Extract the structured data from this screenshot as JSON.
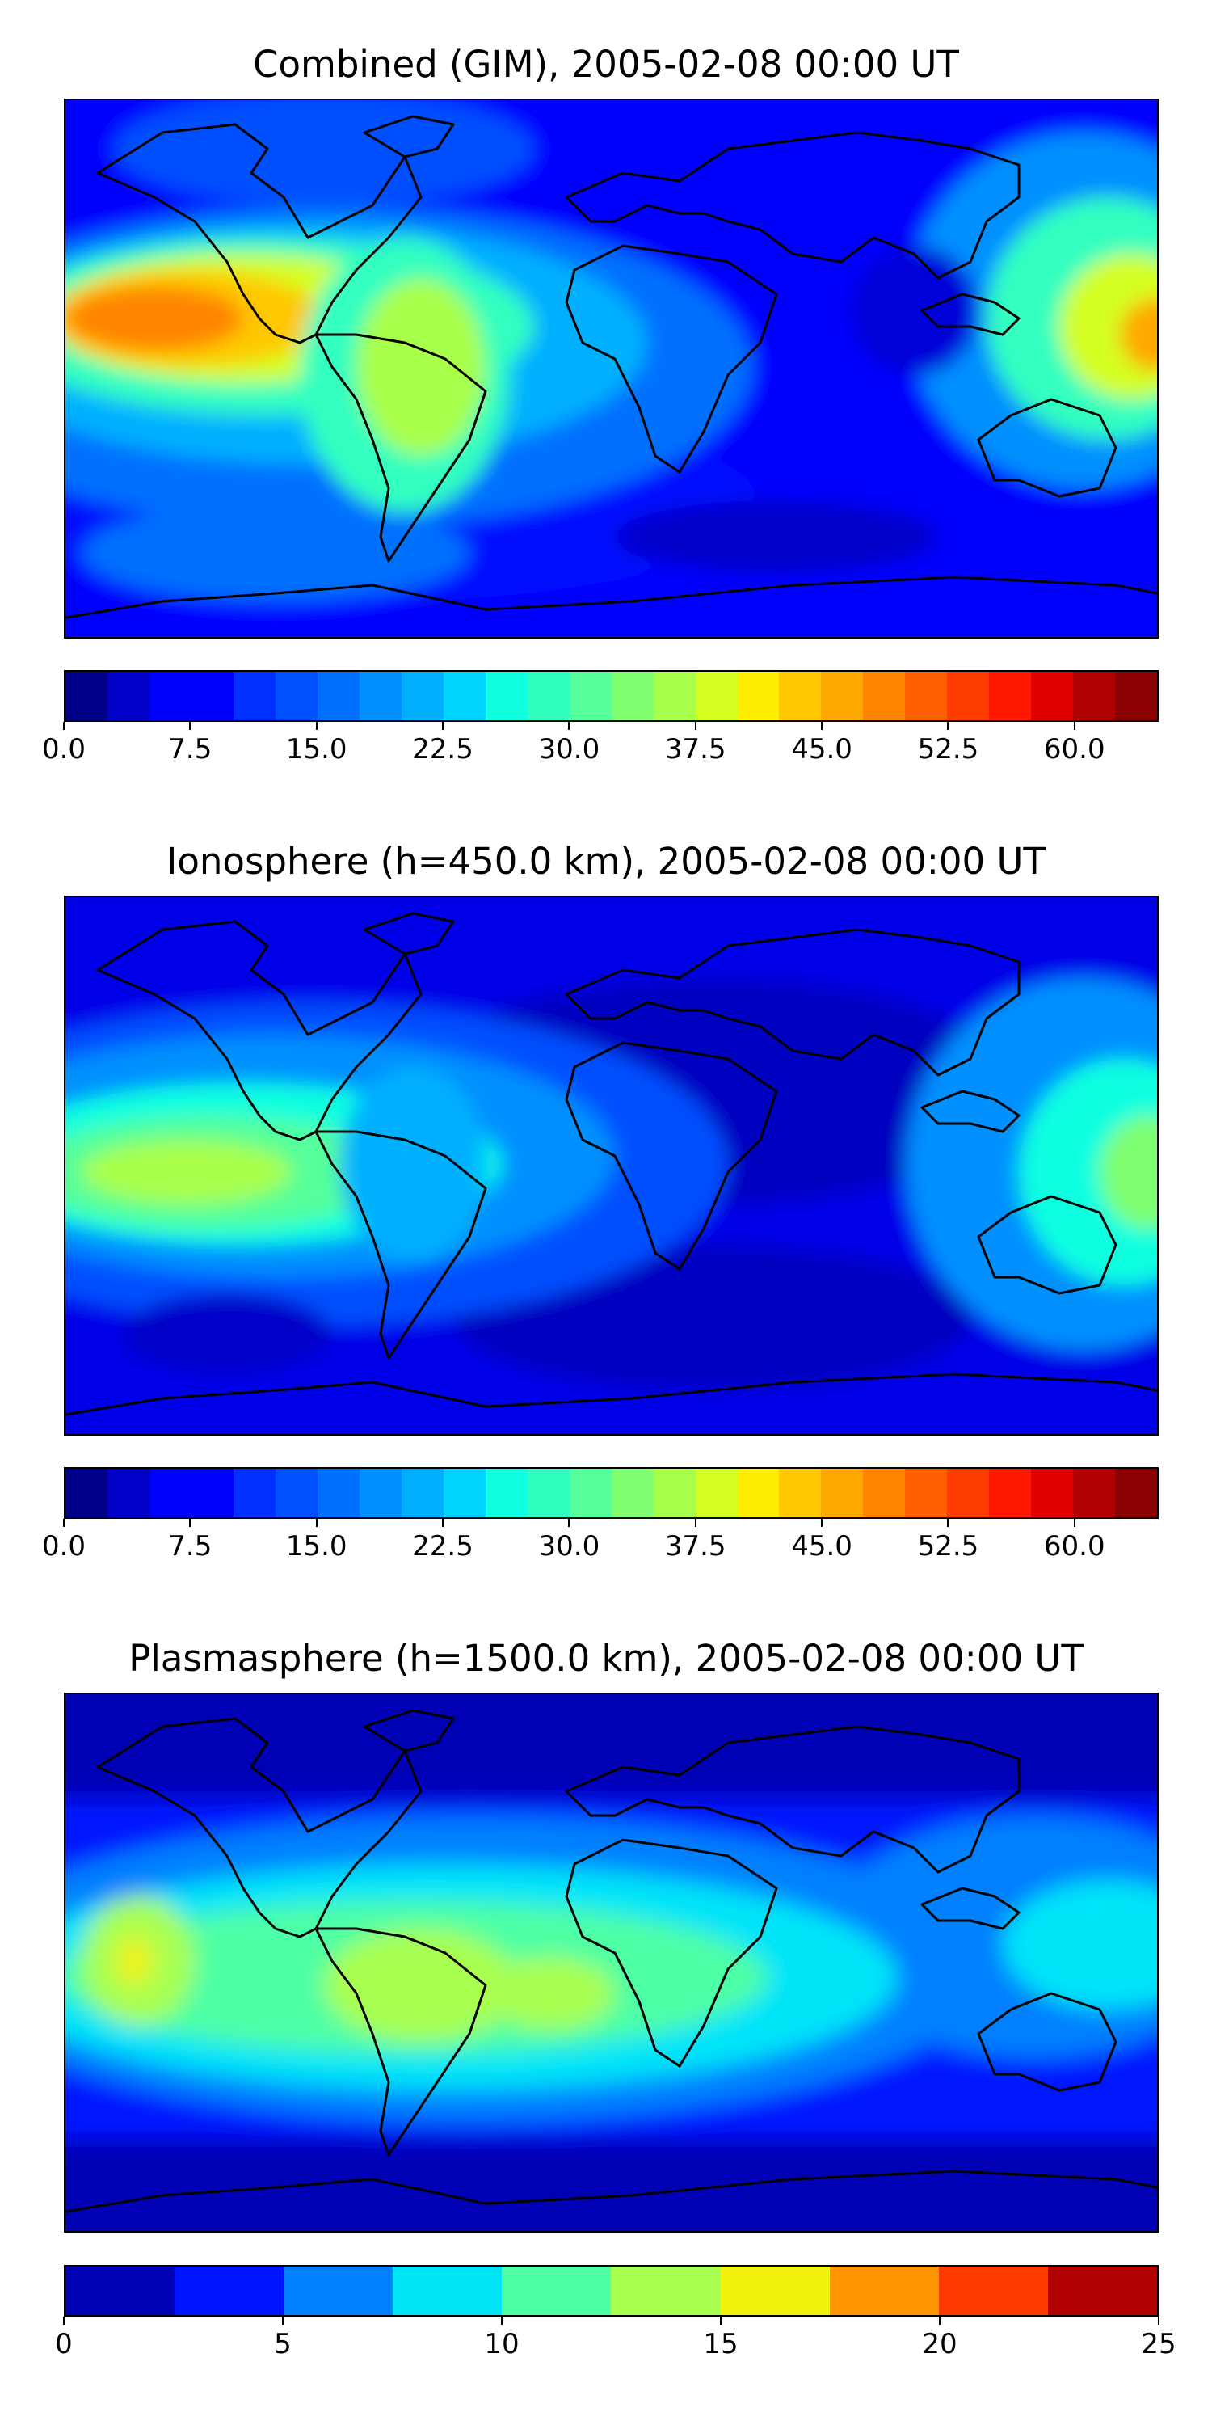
{
  "panels": [
    {
      "title": "Combined (GIM), 2005-02-08 00:00 UT",
      "field": "combined",
      "colorbar": {
        "colors": [
          "#00008b",
          "#0000c8",
          "#0000ff",
          "#0000ff",
          "#0030ff",
          "#0050ff",
          "#0070ff",
          "#0090ff",
          "#00b0ff",
          "#00d4ff",
          "#10ffe0",
          "#30ffc0",
          "#55ff9a",
          "#80ff70",
          "#a8ff4a",
          "#d4ff20",
          "#ffee00",
          "#ffc800",
          "#ffa800",
          "#ff8400",
          "#ff6000",
          "#ff3c00",
          "#ff1800",
          "#e00000",
          "#b00000",
          "#8b0000"
        ],
        "vmin": 0,
        "vmax": 65,
        "tick_values": [
          0,
          7.5,
          15,
          22.5,
          30,
          37.5,
          45,
          52.5,
          60
        ],
        "tick_labels": [
          "0.0",
          "7.5",
          "15.0",
          "22.5",
          "30.0",
          "37.5",
          "45.0",
          "52.5",
          "60.0"
        ]
      }
    },
    {
      "title": "Ionosphere  (h=450.0 km), 2005-02-08 00:00 UT",
      "field": "ionosphere",
      "colorbar": {
        "colors": [
          "#00008b",
          "#0000c8",
          "#0000ff",
          "#0000ff",
          "#0030ff",
          "#0050ff",
          "#0070ff",
          "#0090ff",
          "#00b0ff",
          "#00d4ff",
          "#10ffe0",
          "#30ffc0",
          "#55ff9a",
          "#80ff70",
          "#a8ff4a",
          "#d4ff20",
          "#ffee00",
          "#ffc800",
          "#ffa800",
          "#ff8400",
          "#ff6000",
          "#ff3c00",
          "#ff1800",
          "#e00000",
          "#b00000",
          "#8b0000"
        ],
        "vmin": 0,
        "vmax": 65,
        "tick_values": [
          0,
          7.5,
          15,
          22.5,
          30,
          37.5,
          45,
          52.5,
          60
        ],
        "tick_labels": [
          "0.0",
          "7.5",
          "15.0",
          "22.5",
          "30.0",
          "37.5",
          "45.0",
          "52.5",
          "60.0"
        ]
      }
    },
    {
      "title": "Plasmasphere (h=1500.0 km), 2005-02-08 00:00 UT",
      "field": "plasmasphere",
      "colorbar": {
        "colors": [
          "#0000b4",
          "#0014ff",
          "#0080ff",
          "#00e4f8",
          "#4dffa5",
          "#a8ff50",
          "#f2f20e",
          "#ff9500",
          "#ff3b00",
          "#b00000"
        ],
        "vmin": 0,
        "vmax": 25,
        "tick_values": [
          0,
          5,
          10,
          15,
          20,
          25
        ],
        "tick_labels": [
          "0",
          "5",
          "10",
          "15",
          "20",
          "25"
        ]
      }
    }
  ]
}
